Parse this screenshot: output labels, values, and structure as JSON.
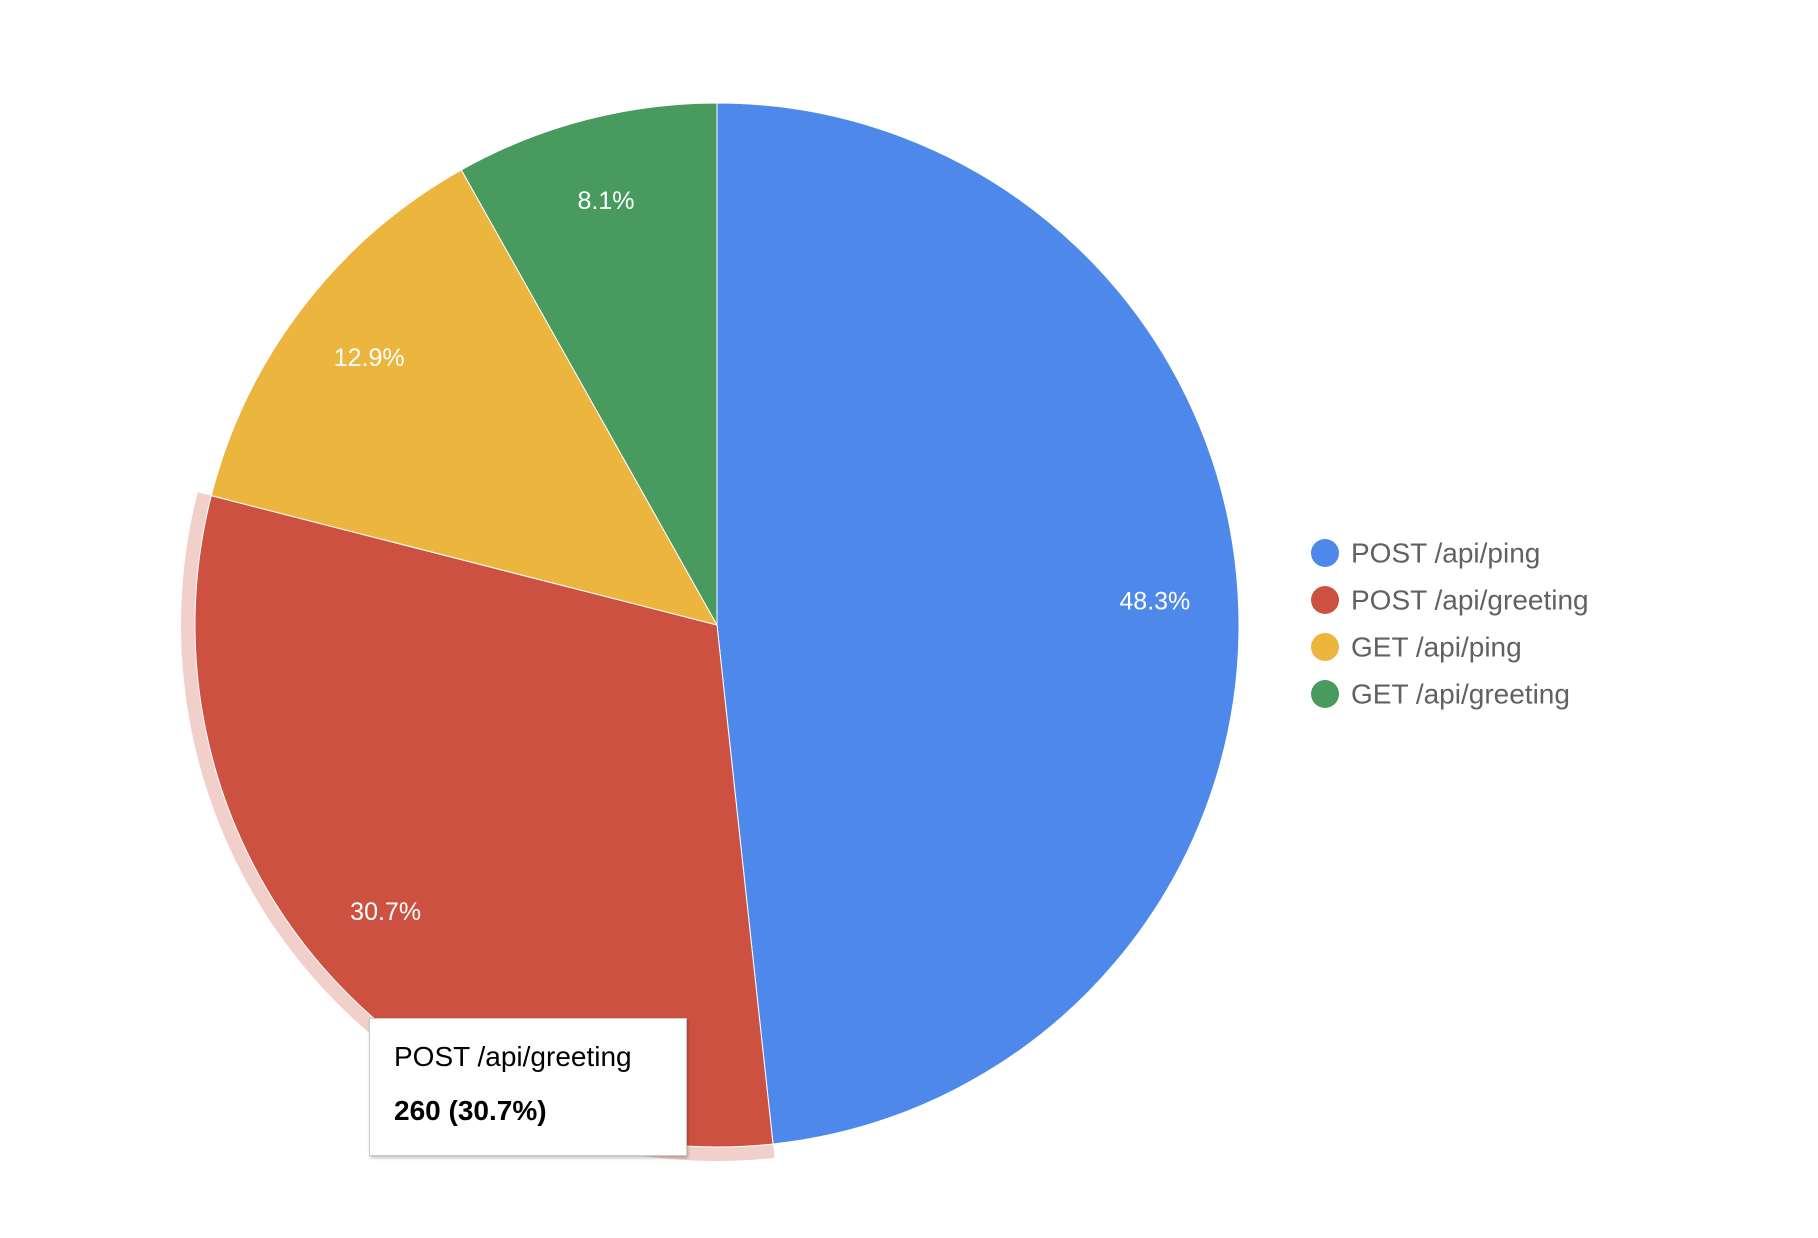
{
  "chart_data": {
    "type": "pie",
    "title": "",
    "series": [
      {
        "name": "POST /api/ping",
        "value": 409,
        "percent_label": "48.3%",
        "color": "#4e88eb"
      },
      {
        "name": "POST /api/greeting",
        "value": 260,
        "percent_label": "30.7%",
        "color": "#cd5140"
      },
      {
        "name": "GET /api/ping",
        "value": 109,
        "percent_label": "12.9%",
        "color": "#ebb53e"
      },
      {
        "name": "GET /api/greeting",
        "value": 69,
        "percent_label": "8.1%",
        "color": "#489a5e"
      }
    ],
    "legend_position": "right",
    "highlighted_slice": "POST /api/greeting"
  },
  "tooltip": {
    "name": "POST /api/greeting",
    "value": "260 (30.7%)"
  }
}
